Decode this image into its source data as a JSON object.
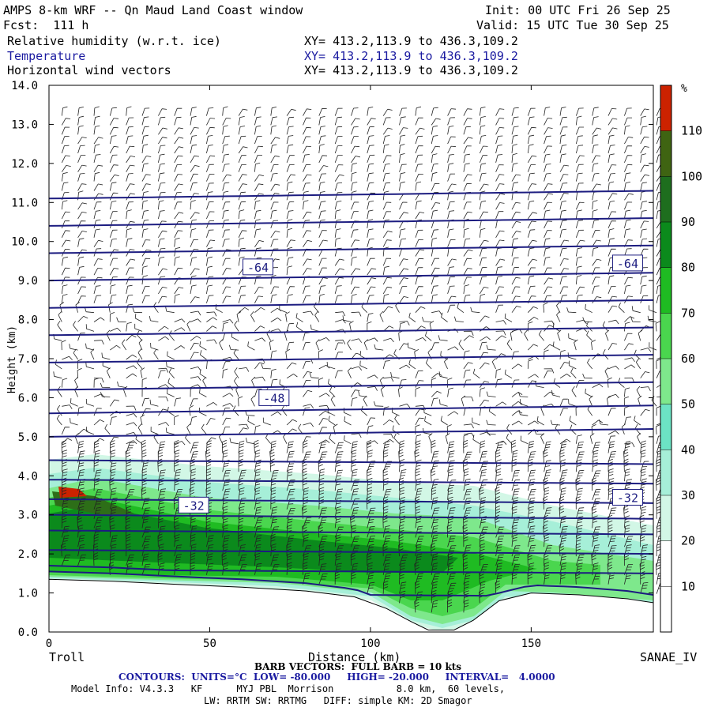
{
  "header": {
    "title": "AMPS 8-km WRF -- Qn Maud Land Coast window",
    "init": "Init: 00 UTC Fri 26 Sep 25",
    "fcst": "Fcst:  111 h",
    "valid": "Valid: 15 UTC Tue 30 Sep 25"
  },
  "fields": [
    {
      "name": "Relative humidity (w.r.t. ice)",
      "xy": "XY= 413.2,113.9 to 436.3,109.2"
    },
    {
      "name": "Temperature",
      "xy": "XY= 413.2,113.9 to 436.3,109.2"
    },
    {
      "name": "Horizontal wind vectors",
      "xy": "XY= 413.2,113.9 to 436.3,109.2"
    }
  ],
  "footer": {
    "left_station": "Troll",
    "right_station": "SANAE_IV",
    "barb_note": "BARB VECTORS:  FULL BARB = 10 kts",
    "contours": "CONTOURS:  UNITS=°C  LOW= -80.000     HIGH= -20.000     INTERVAL=   4.0000",
    "model_info_1": "Model Info: V4.3.3   KF      MYJ PBL  Morrison           8.0 km,  60 levels,",
    "model_info_2": "LW: RRTM SW: RRTMG   DIFF: simple KM: 2D Smagor"
  },
  "colors": {
    "contour": "#1c1c80",
    "rh_scale": [
      "#ffffff",
      "#ffffff",
      "#ffffff",
      "#d2f7e6",
      "#a6efd8",
      "#6ce3c4",
      "#7ee88c",
      "#4ad64e",
      "#1fbb22",
      "#0b8a1c",
      "#1e6e1e",
      "#3f6412",
      "#cc2200"
    ]
  },
  "chart_data": {
    "type": "cross-section",
    "xlabel": "Distance (km)",
    "ylabel": "Height (km)",
    "xlim": [
      0,
      188
    ],
    "ylim": [
      0,
      14
    ],
    "xticks": [
      "0",
      "50",
      "100",
      "150"
    ],
    "xtick_values": [
      0,
      50,
      100,
      150
    ],
    "yticks": [
      "0.0",
      "1.0",
      "2.0",
      "3.0",
      "4.0",
      "5.0",
      "6.0",
      "7.0",
      "8.0",
      "9.0",
      "10.0",
      "11.0",
      "12.0",
      "13.0",
      "14.0"
    ],
    "colorbar": {
      "unit": "%",
      "labels": [
        "10",
        "20",
        "30",
        "40",
        "50",
        "60",
        "70",
        "80",
        "90",
        "100",
        "110"
      ],
      "bounds": [
        0,
        120
      ]
    },
    "terrain_km": [
      [
        0,
        1.35
      ],
      [
        20,
        1.3
      ],
      [
        40,
        1.22
      ],
      [
        60,
        1.15
      ],
      [
        80,
        1.05
      ],
      [
        95,
        0.9
      ],
      [
        105,
        0.6
      ],
      [
        113,
        0.25
      ],
      [
        118,
        0.05
      ],
      [
        126,
        0.05
      ],
      [
        132,
        0.3
      ],
      [
        140,
        0.8
      ],
      [
        150,
        1.0
      ],
      [
        165,
        0.95
      ],
      [
        180,
        0.85
      ],
      [
        188,
        0.75
      ]
    ],
    "contour_labels": [
      {
        "text": "-64",
        "x": 65,
        "y": 9.35
      },
      {
        "text": "-64",
        "x": 180,
        "y": 9.45
      },
      {
        "text": "-48",
        "x": 70,
        "y": 6.0
      },
      {
        "text": "-32",
        "x": 45,
        "y": 3.25
      },
      {
        "text": "-32",
        "x": 180,
        "y": 3.45
      }
    ]
  }
}
